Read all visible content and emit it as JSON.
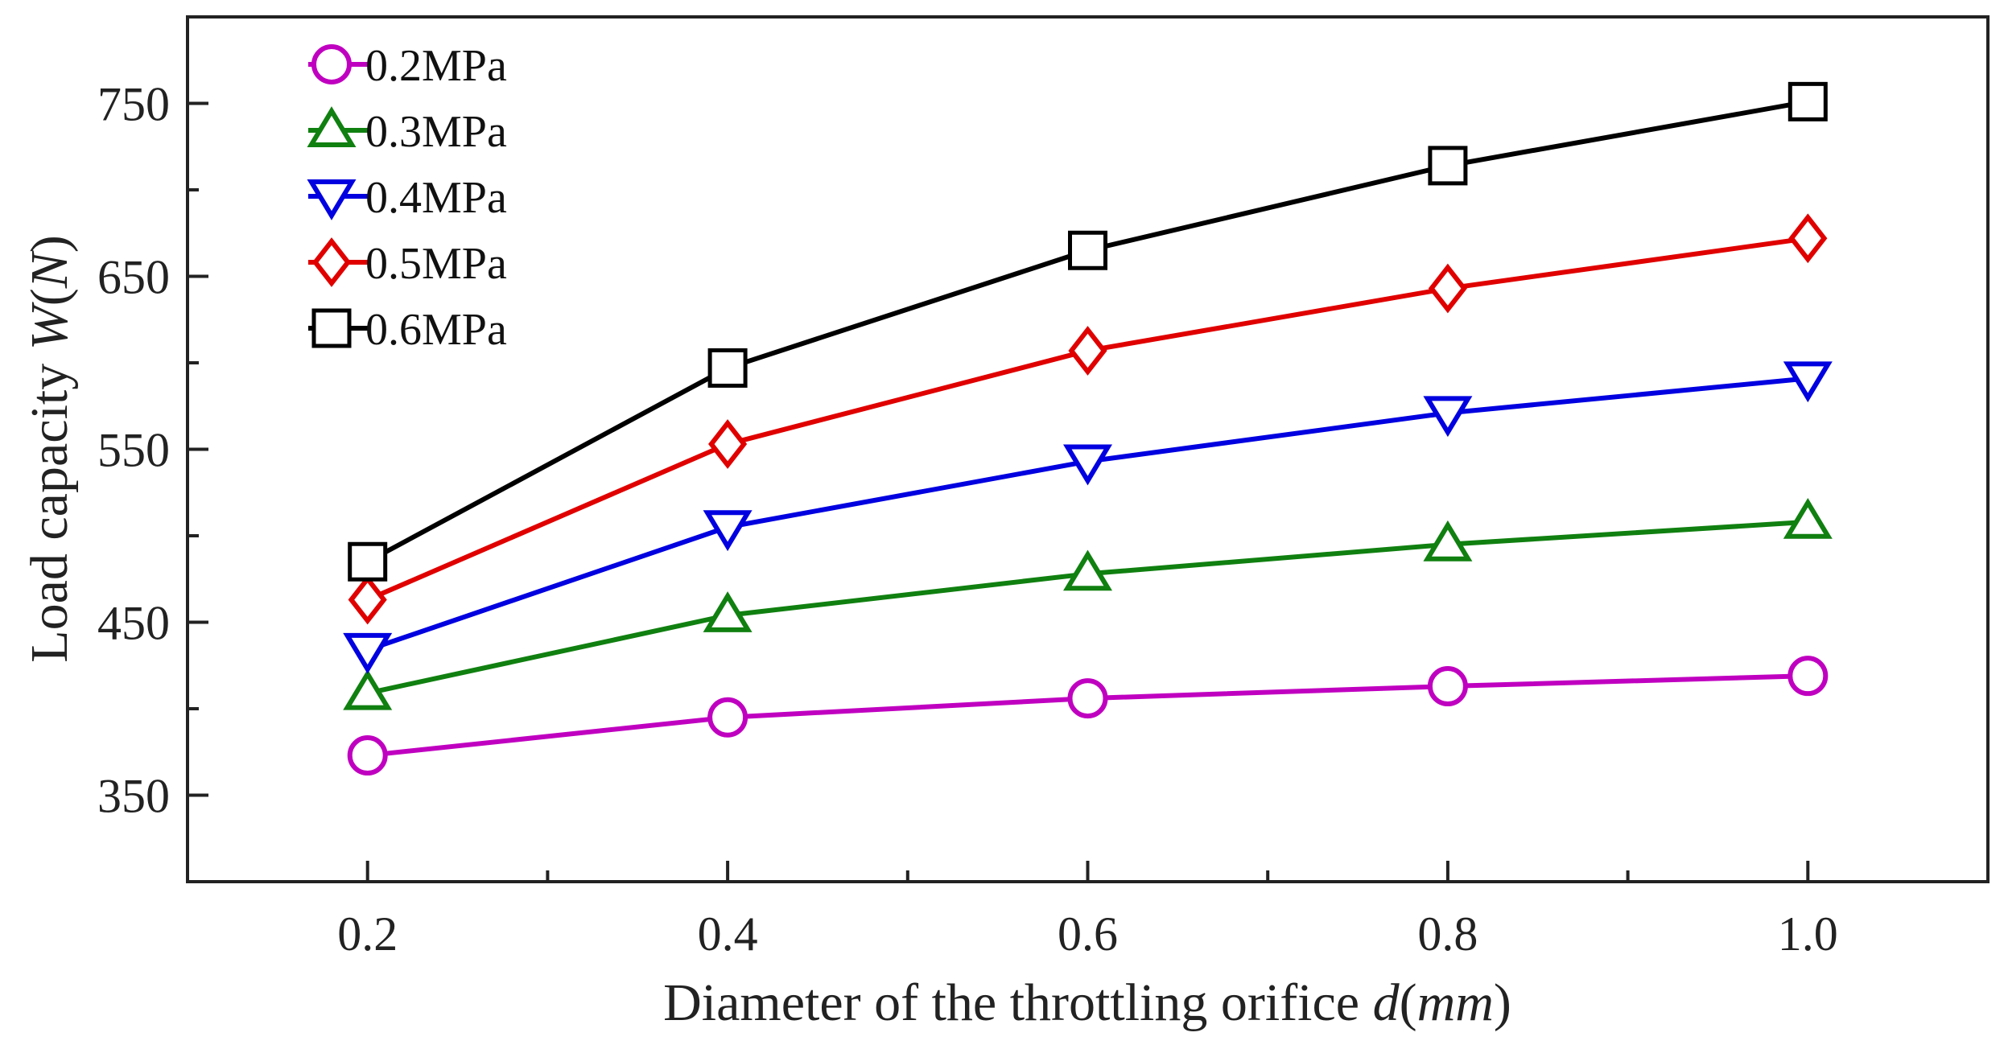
{
  "chart_data": {
    "type": "line",
    "title": "",
    "xlabel": "Diameter of the throttling orifice ",
    "xlabel_var": "d",
    "xlabel_unit": "mm",
    "ylabel": "Load capacity ",
    "ylabel_var": "W",
    "ylabel_unit": "N",
    "x": [
      0.2,
      0.4,
      0.6,
      0.8,
      1.0
    ],
    "xlim": [
      0.1,
      1.1
    ],
    "ylim": [
      300,
      800
    ],
    "xticks": [
      0.2,
      0.4,
      0.6,
      0.8,
      1.0
    ],
    "xtick_labels": [
      "0.2",
      "0.4",
      "0.6",
      "0.8",
      "1.0"
    ],
    "xminor": [
      0.3,
      0.5,
      0.7,
      0.9
    ],
    "yticks": [
      350,
      450,
      550,
      650,
      750
    ],
    "ytick_labels": [
      "350",
      "450",
      "550",
      "650",
      "750"
    ],
    "yminor": [
      400,
      500,
      600,
      700
    ],
    "grid": false,
    "legend_position": "top-left",
    "series": [
      {
        "name": "0.2MPa",
        "color": "#c000c0",
        "marker": "circle",
        "values": [
          373,
          395,
          406,
          413,
          419
        ]
      },
      {
        "name": "0.3MPa",
        "color": "#108010",
        "marker": "triangle-up",
        "values": [
          409,
          454,
          478,
          495,
          508
        ]
      },
      {
        "name": "0.4MPa",
        "color": "#0000e0",
        "marker": "triangle-down",
        "values": [
          434,
          505,
          543,
          571,
          591
        ]
      },
      {
        "name": "0.5MPa",
        "color": "#e00000",
        "marker": "diamond",
        "values": [
          463,
          553,
          607,
          643,
          672
        ]
      },
      {
        "name": "0.6MPa",
        "color": "#000000",
        "marker": "square",
        "values": [
          485,
          597,
          665,
          714,
          751
        ]
      }
    ]
  }
}
